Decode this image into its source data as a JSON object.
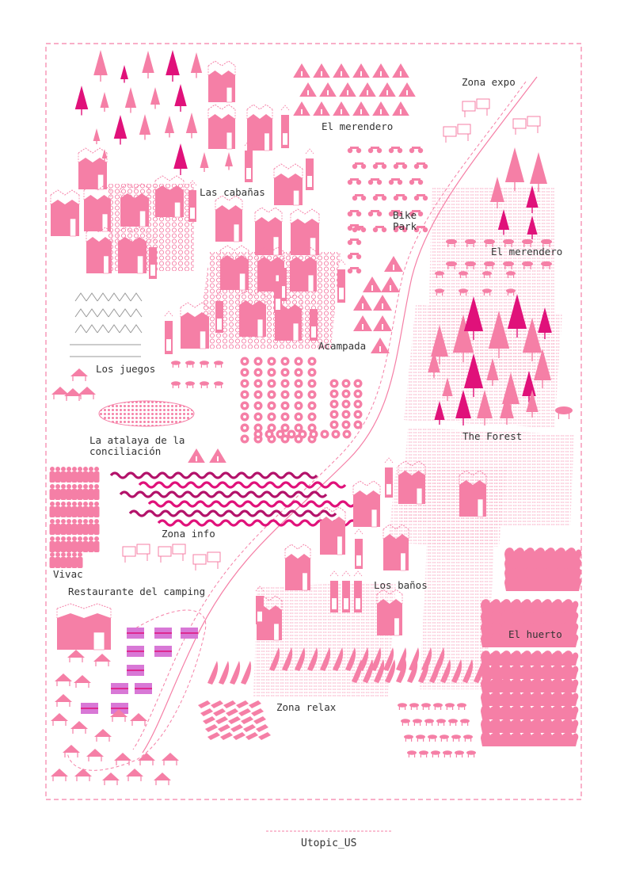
{
  "palette": {
    "pink": "#f57fa6",
    "magenta": "#e0117a",
    "light_pink": "#f9b6cc",
    "violet": "#d878d6",
    "border": "#f57fa6",
    "text": "#333333"
  },
  "map": {
    "zones": {
      "zona_expo": "Zona expo",
      "el_merendero_top": "El merendero",
      "bike_park": [
        "Bike",
        "Park"
      ],
      "las_cabanas": "Las cabañas",
      "el_merendero_right": "El merendero",
      "acampada": "Acampada",
      "los_juegos": "Los juegos",
      "la_atalaya": [
        "La atalaya de la",
        "conciliación"
      ],
      "the_forest": "The Forest",
      "zona_info": "Zona info",
      "vivac": "Vivac",
      "restaurante": "Restaurante del camping",
      "los_banos": "Los baños",
      "el_huerto": "El huerto",
      "zona_relax": "Zona relax"
    },
    "icons": [
      "tree-icon",
      "tent-icon",
      "cabin-icon",
      "bike-icon",
      "table-icon",
      "sign-icon",
      "plant-icon",
      "wave-icon"
    ]
  },
  "footer": {
    "title": "Utopic_US"
  }
}
